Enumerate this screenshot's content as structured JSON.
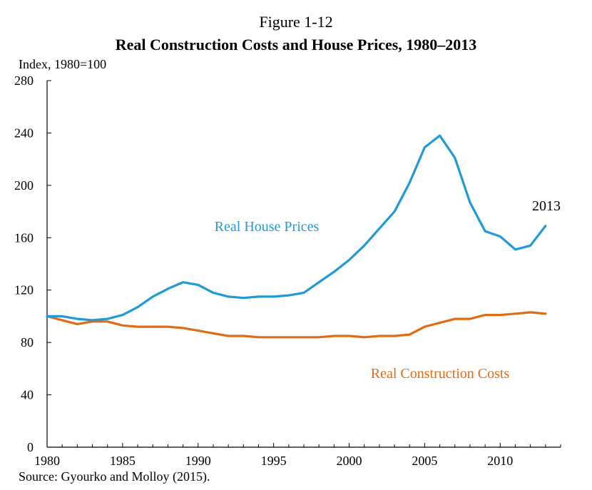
{
  "figure_label": "Figure 1-12",
  "source": "Source: Gyourko and Molloy (2015).",
  "chart_data": {
    "type": "line",
    "title": "Real Construction Costs and House Prices, 1980–2013",
    "ylabel": "Index, 1980=100",
    "xlabel": "",
    "xlim": [
      1980,
      2014
    ],
    "ylim": [
      0,
      280
    ],
    "xticks": [
      1980,
      1985,
      1990,
      1995,
      2000,
      2005,
      2010
    ],
    "yticks": [
      0,
      40,
      80,
      120,
      160,
      200,
      240,
      280
    ],
    "grid": false,
    "x": [
      1980,
      1981,
      1982,
      1983,
      1984,
      1985,
      1986,
      1987,
      1988,
      1989,
      1990,
      1991,
      1992,
      1993,
      1994,
      1995,
      1996,
      1997,
      1998,
      1999,
      2000,
      2001,
      2002,
      2003,
      2004,
      2005,
      2006,
      2007,
      2008,
      2009,
      2010,
      2011,
      2012,
      2013
    ],
    "series": [
      {
        "name": "Real House Prices",
        "color": "#1f9ad6",
        "values": [
          100,
          100,
          98,
          97,
          98,
          101,
          107,
          115,
          121,
          126,
          124,
          118,
          115,
          114,
          115,
          115,
          116,
          118,
          126,
          134,
          143,
          154,
          167,
          180,
          202,
          229,
          238,
          221,
          187,
          165,
          161,
          151,
          154,
          169
        ]
      },
      {
        "name": "Real Construction Costs",
        "color": "#e06c16",
        "values": [
          100,
          97,
          94,
          96,
          96,
          93,
          92,
          92,
          92,
          91,
          89,
          87,
          85,
          85,
          84,
          84,
          84,
          84,
          84,
          85,
          85,
          84,
          85,
          85,
          86,
          92,
          95,
          98,
          98,
          101,
          101,
          102,
          103,
          102
        ]
      }
    ],
    "annotations": [
      {
        "text": "Real House Prices",
        "series": 0
      },
      {
        "text": "Real Construction Costs",
        "series": 1
      },
      {
        "text": "2013",
        "series": 0
      }
    ]
  }
}
